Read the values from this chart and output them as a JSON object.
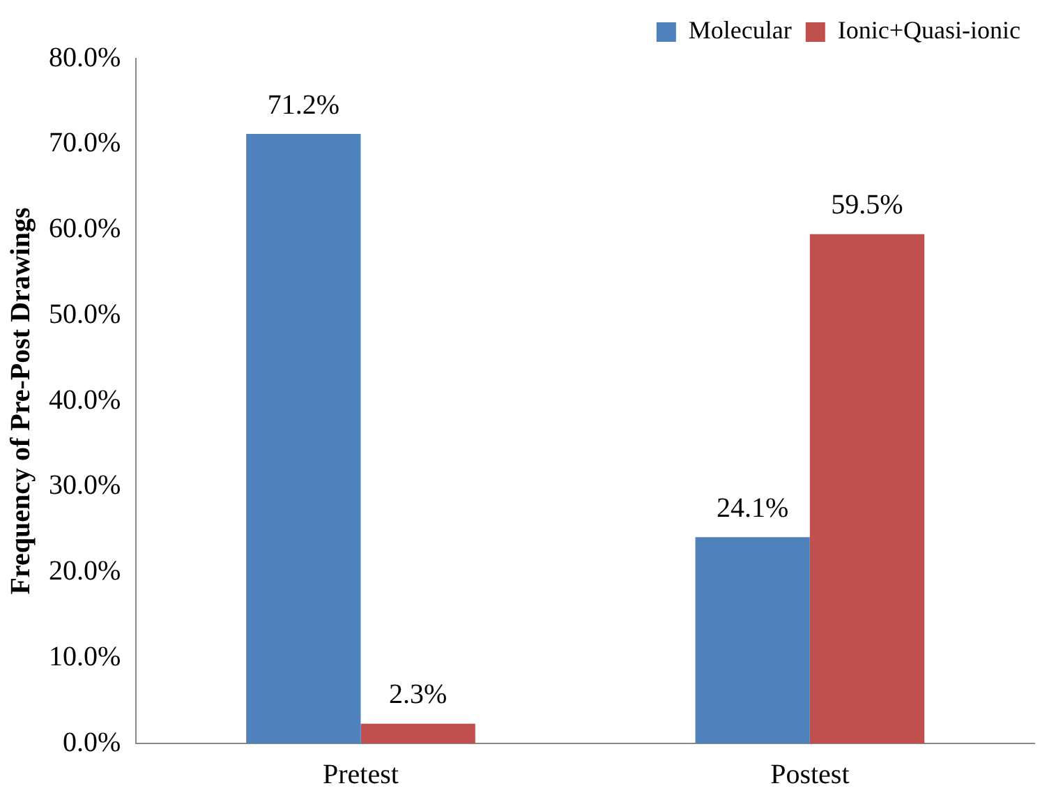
{
  "chart_data": {
    "type": "bar",
    "ylabel": "Frequency of Pre-Post Drawings",
    "categories": [
      "Pretest",
      "Postest"
    ],
    "series": [
      {
        "name": "Molecular",
        "color": "#4f81bd",
        "values": [
          71.2,
          24.1
        ],
        "value_labels": [
          "71.2%",
          "24.1%"
        ]
      },
      {
        "name": "Ionic+Quasi-ionic",
        "color": "#c0504d",
        "values": [
          2.3,
          59.5
        ],
        "value_labels": [
          "2.3%",
          "59.5%"
        ]
      }
    ],
    "ylim": [
      0,
      80
    ],
    "yticks": [
      {
        "value": 0,
        "label": "0.0%"
      },
      {
        "value": 10,
        "label": "10.0%"
      },
      {
        "value": 20,
        "label": "20.0%"
      },
      {
        "value": 30,
        "label": "30.0%"
      },
      {
        "value": 40,
        "label": "40.0%"
      },
      {
        "value": 50,
        "label": "50.0%"
      },
      {
        "value": 60,
        "label": "60.0%"
      },
      {
        "value": 70,
        "label": "70.0%"
      },
      {
        "value": 80,
        "label": "80.0%"
      }
    ],
    "legend": "top right"
  }
}
